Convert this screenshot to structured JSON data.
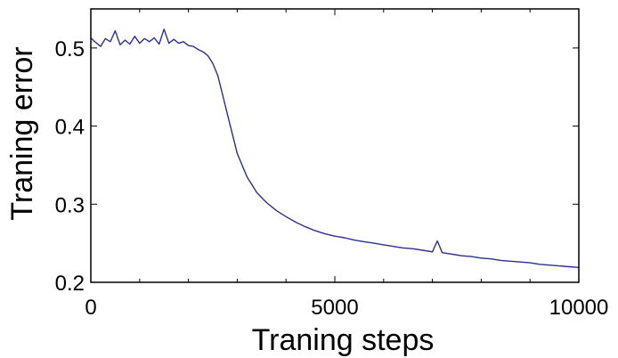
{
  "chart_data": {
    "type": "line",
    "title": "",
    "xlabel": "Traning steps",
    "ylabel": "Traning error",
    "xlim": [
      0,
      10000
    ],
    "ylim": [
      0.2,
      0.55
    ],
    "x_ticks": [
      0,
      5000,
      10000
    ],
    "x_tick_labels": [
      "0",
      "5000",
      "10000"
    ],
    "x_minor_ticks": [
      1000,
      2000,
      3000,
      4000,
      6000,
      7000,
      8000,
      9000
    ],
    "y_ticks": [
      0.2,
      0.3,
      0.4,
      0.5
    ],
    "y_tick_labels": [
      "0.2",
      "0.3",
      "0.4",
      "0.5"
    ],
    "grid": false,
    "legend": "none",
    "series_color": "#2b2f8f",
    "series": [
      {
        "x": [
          0,
          100,
          200,
          300,
          400,
          500,
          600,
          700,
          800,
          900,
          1000,
          1100,
          1200,
          1300,
          1400,
          1500,
          1600,
          1700,
          1800,
          1900,
          2000,
          2100,
          2200,
          2300,
          2400,
          2500,
          2600,
          2700,
          2800,
          2900,
          3000,
          3200,
          3400,
          3600,
          3800,
          4000,
          4200,
          4400,
          4600,
          4800,
          5000,
          5200,
          5400,
          5600,
          5800,
          6000,
          6200,
          6400,
          6600,
          6800,
          7000,
          7100,
          7200,
          7400,
          7600,
          7800,
          8000,
          8200,
          8400,
          8600,
          8800,
          9000,
          9200,
          9400,
          9600,
          9800,
          10000
        ],
        "y": [
          0.513,
          0.507,
          0.502,
          0.512,
          0.508,
          0.522,
          0.504,
          0.51,
          0.505,
          0.515,
          0.506,
          0.512,
          0.508,
          0.513,
          0.505,
          0.524,
          0.506,
          0.511,
          0.506,
          0.508,
          0.503,
          0.502,
          0.498,
          0.495,
          0.49,
          0.48,
          0.465,
          0.44,
          0.415,
          0.39,
          0.365,
          0.335,
          0.315,
          0.302,
          0.292,
          0.284,
          0.277,
          0.271,
          0.266,
          0.262,
          0.259,
          0.257,
          0.254,
          0.252,
          0.25,
          0.248,
          0.246,
          0.244,
          0.243,
          0.241,
          0.239,
          0.253,
          0.238,
          0.236,
          0.234,
          0.233,
          0.231,
          0.23,
          0.228,
          0.227,
          0.226,
          0.225,
          0.223,
          0.222,
          0.221,
          0.22,
          0.219
        ]
      }
    ]
  }
}
